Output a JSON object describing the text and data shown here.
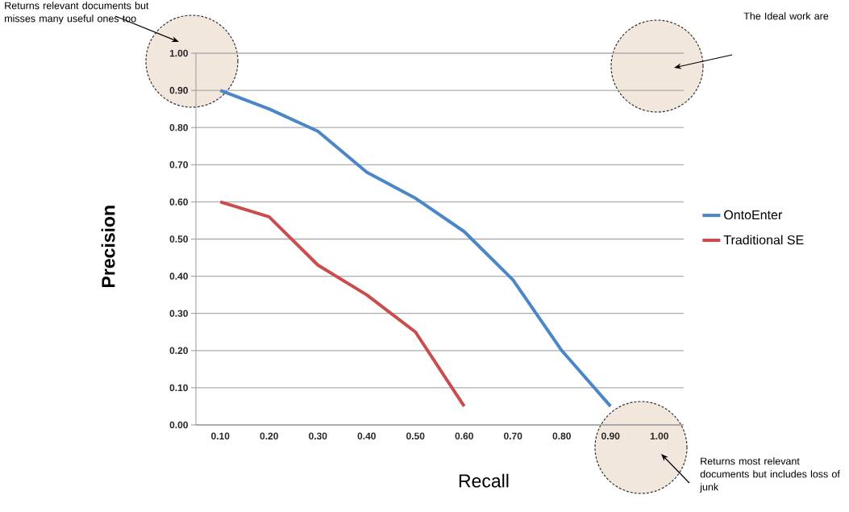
{
  "chart_data": {
    "type": "line",
    "xlabel": "Recall",
    "ylabel": "Precision",
    "categories": [
      "0.10",
      "0.20",
      "0.30",
      "0.40",
      "0.50",
      "0.60",
      "0.70",
      "0.80",
      "0.90",
      "1.00"
    ],
    "series": [
      {
        "name": "OntoEnter",
        "color": "#4a86c8",
        "values": [
          0.9,
          0.85,
          0.79,
          0.68,
          0.61,
          0.52,
          0.39,
          0.2,
          0.05,
          null
        ]
      },
      {
        "name": "Traditional SE",
        "color": "#cc4b4b",
        "values": [
          0.6,
          0.56,
          0.43,
          0.35,
          0.25,
          0.05,
          null,
          null,
          null,
          null
        ]
      }
    ],
    "ylim": [
      0,
      1
    ],
    "yticks": [
      {
        "value": 0,
        "label": "0.00"
      },
      {
        "value": 0.1,
        "label": "0.10"
      },
      {
        "value": 0.2,
        "label": "0.20"
      },
      {
        "value": 0.3,
        "label": "0.30"
      },
      {
        "value": 0.4,
        "label": "0.40"
      },
      {
        "value": 0.5,
        "label": "0.50"
      },
      {
        "value": 0.6,
        "label": "0.60"
      },
      {
        "value": 0.7,
        "label": "0.70"
      },
      {
        "value": 0.8,
        "label": "0.80"
      },
      {
        "value": 0.9,
        "label": "0.90"
      },
      {
        "value": 1,
        "label": "1.00"
      }
    ],
    "grid": "y",
    "legend": "right",
    "marker": "none",
    "annotations": [
      "Returns relevant documents but misses many useful ones too",
      "The Ideal work are",
      "Returns most relevant documents but includes loss of junk"
    ]
  }
}
